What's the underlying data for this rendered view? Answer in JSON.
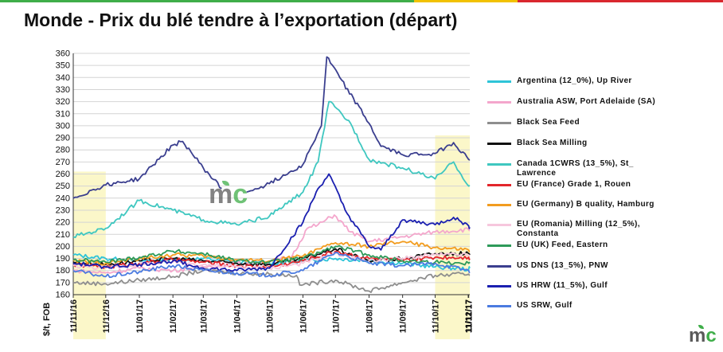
{
  "title": "Monde - Prix du blé tendre à l’exportation (départ)",
  "brand": {
    "logo_text_m": "m",
    "logo_text_c": "c",
    "logo_icon": "mc-leaf-logo",
    "colors": [
      "#3fae49",
      "#f2c200",
      "#d9272e"
    ]
  },
  "chart_data": {
    "type": "line",
    "title": "",
    "ylabel": "$/t, FOB",
    "xlabel": "",
    "ylim": [
      160,
      360
    ],
    "ytick_step": 10,
    "xlim": [
      "2016-11-11",
      "2017-11-12"
    ],
    "x_tick_labels": [
      "11/11/16",
      "11/12/16",
      "11/01/17",
      "11/02/17",
      "11/03/17",
      "11/04/17",
      "11/05/17",
      "11/06/17",
      "11/07/17",
      "11/08/17",
      "11/09/17",
      "11/10/17",
      "11/11/17",
      "11/12/17"
    ],
    "x_tick_dates": [
      "2016-11-11",
      "2016-12-11",
      "2017-01-11",
      "2017-02-11",
      "2017-03-11",
      "2017-04-11",
      "2017-05-11",
      "2017-06-11",
      "2017-07-11",
      "2017-08-11",
      "2017-09-11",
      "2017-10-11",
      "2017-11-11",
      "2017-12-11"
    ],
    "grid": "horizontal",
    "legend_position": "right",
    "highlight_color": "#fbf7c9",
    "highlights": [
      {
        "from": "2016-11-11",
        "to": "2016-12-11",
        "ymax": 262
      },
      {
        "from": "2017-10-11",
        "to": "2017-11-12",
        "ymax": 292
      }
    ],
    "series": [
      {
        "name": "Argentina (12_0%), Up River",
        "color": "#2ec4d8",
        "values": [
          [
            "2016-11-11",
            193
          ],
          [
            "2016-12-11",
            190
          ],
          [
            "2017-01-11",
            188
          ],
          [
            "2017-02-11",
            189
          ],
          [
            "2017-03-11",
            190
          ],
          [
            "2017-04-11",
            187
          ],
          [
            "2017-05-11",
            186
          ],
          [
            "2017-06-11",
            188
          ],
          [
            "2017-07-11",
            190
          ],
          [
            "2017-08-11",
            188
          ],
          [
            "2017-09-11",
            186
          ],
          [
            "2017-10-11",
            183
          ],
          [
            "2017-11-11",
            181
          ],
          [
            "2017-11-12",
            182
          ]
        ]
      },
      {
        "name": "Australia ASW, Port Adelaide (SA)",
        "color": "#f4a6cc",
        "values": [
          [
            "2016-11-11",
            180
          ],
          [
            "2016-12-11",
            178
          ],
          [
            "2017-01-11",
            182
          ],
          [
            "2017-02-11",
            180
          ],
          [
            "2017-03-11",
            183
          ],
          [
            "2017-04-11",
            186
          ],
          [
            "2017-05-11",
            187
          ],
          [
            "2017-06-01",
            192
          ],
          [
            "2017-06-15",
            215
          ],
          [
            "2017-06-25",
            218
          ],
          [
            "2017-07-10",
            226
          ],
          [
            "2017-07-25",
            212
          ],
          [
            "2017-08-11",
            204
          ],
          [
            "2017-09-11",
            208
          ],
          [
            "2017-10-11",
            212
          ],
          [
            "2017-11-11",
            214
          ],
          [
            "2017-11-12",
            213
          ]
        ]
      },
      {
        "name": "Black Sea Feed",
        "color": "#8e8e8e",
        "values": [
          [
            "2016-11-11",
            170
          ],
          [
            "2016-12-11",
            169
          ],
          [
            "2017-01-11",
            172
          ],
          [
            "2017-02-11",
            175
          ],
          [
            "2017-03-11",
            180
          ],
          [
            "2017-04-11",
            178
          ],
          [
            "2017-05-11",
            177
          ],
          [
            "2017-06-05",
            176
          ],
          [
            "2017-06-08",
            168
          ],
          [
            "2017-07-11",
            172
          ],
          [
            "2017-08-11",
            163
          ],
          [
            "2017-09-11",
            170
          ],
          [
            "2017-10-11",
            176
          ],
          [
            "2017-11-11",
            177
          ],
          [
            "2017-11-12",
            176
          ]
        ]
      },
      {
        "name": "Black Sea Milling",
        "color": "#111111",
        "values": [
          [
            "2016-11-11",
            187
          ],
          [
            "2016-12-11",
            185
          ],
          [
            "2017-01-11",
            188
          ],
          [
            "2017-02-11",
            190
          ],
          [
            "2017-03-11",
            188
          ],
          [
            "2017-04-11",
            186
          ],
          [
            "2017-05-11",
            185
          ],
          [
            "2017-06-11",
            190
          ],
          [
            "2017-07-11",
            198
          ],
          [
            "2017-08-11",
            188
          ],
          [
            "2017-09-11",
            190
          ],
          [
            "2017-10-11",
            194
          ],
          [
            "2017-11-11",
            194
          ],
          [
            "2017-11-12",
            193
          ]
        ]
      },
      {
        "name": "Canada 1CWRS (13_5%), St_ Lawrence",
        "color": "#3fc7c0",
        "values": [
          [
            "2016-11-11",
            208
          ],
          [
            "2016-12-11",
            215
          ],
          [
            "2017-01-11",
            238
          ],
          [
            "2017-02-11",
            230
          ],
          [
            "2017-03-11",
            222
          ],
          [
            "2017-04-11",
            218
          ],
          [
            "2017-05-11",
            225
          ],
          [
            "2017-06-11",
            245
          ],
          [
            "2017-06-25",
            270
          ],
          [
            "2017-07-05",
            320
          ],
          [
            "2017-07-25",
            302
          ],
          [
            "2017-08-11",
            272
          ],
          [
            "2017-09-11",
            265
          ],
          [
            "2017-10-11",
            256
          ],
          [
            "2017-10-28",
            270
          ],
          [
            "2017-11-11",
            250
          ],
          [
            "2017-11-12",
            250
          ]
        ]
      },
      {
        "name": "EU (France) Grade 1, Rouen",
        "color": "#e3252b",
        "values": [
          [
            "2016-11-11",
            185
          ],
          [
            "2016-12-11",
            183
          ],
          [
            "2017-01-11",
            186
          ],
          [
            "2017-02-11",
            189
          ],
          [
            "2017-03-11",
            187
          ],
          [
            "2017-04-11",
            184
          ],
          [
            "2017-05-11",
            183
          ],
          [
            "2017-06-11",
            188
          ],
          [
            "2017-07-11",
            196
          ],
          [
            "2017-08-11",
            190
          ],
          [
            "2017-09-11",
            188
          ],
          [
            "2017-10-11",
            191
          ],
          [
            "2017-11-11",
            191
          ],
          [
            "2017-11-12",
            190
          ]
        ]
      },
      {
        "name": "EU (Germany) B quality, Hamburg",
        "color": "#f29c1f",
        "values": [
          [
            "2016-11-11",
            188
          ],
          [
            "2016-12-11",
            186
          ],
          [
            "2017-01-11",
            190
          ],
          [
            "2017-02-11",
            193
          ],
          [
            "2017-03-11",
            192
          ],
          [
            "2017-04-11",
            189
          ],
          [
            "2017-05-11",
            188
          ],
          [
            "2017-06-11",
            192
          ],
          [
            "2017-07-11",
            203
          ],
          [
            "2017-08-11",
            200
          ],
          [
            "2017-09-11",
            204
          ],
          [
            "2017-10-11",
            199
          ],
          [
            "2017-11-11",
            197
          ],
          [
            "2017-11-12",
            196
          ]
        ]
      },
      {
        "name": "EU (Romania) Milling (12_5%), Constanta",
        "color": "#f6c7dd",
        "values": [
          [
            "2016-11-11",
            184
          ],
          [
            "2016-12-11",
            182
          ],
          [
            "2017-01-11",
            185
          ],
          [
            "2017-02-11",
            187
          ],
          [
            "2017-03-11",
            185
          ],
          [
            "2017-04-11",
            183
          ],
          [
            "2017-05-11",
            182
          ],
          [
            "2017-06-11",
            186
          ],
          [
            "2017-07-11",
            194
          ],
          [
            "2017-08-11",
            188
          ],
          [
            "2017-09-11",
            190
          ],
          [
            "2017-10-11",
            193
          ],
          [
            "2017-11-11",
            193
          ],
          [
            "2017-11-12",
            192
          ]
        ]
      },
      {
        "name": "EU (UK) Feed, Eastern",
        "color": "#2e9a5a",
        "values": [
          [
            "2016-11-11",
            189
          ],
          [
            "2016-12-11",
            187
          ],
          [
            "2017-01-11",
            191
          ],
          [
            "2017-02-11",
            196
          ],
          [
            "2017-03-11",
            194
          ],
          [
            "2017-04-11",
            188
          ],
          [
            "2017-05-11",
            187
          ],
          [
            "2017-06-11",
            190
          ],
          [
            "2017-07-11",
            200
          ],
          [
            "2017-08-11",
            193
          ],
          [
            "2017-09-11",
            188
          ],
          [
            "2017-10-11",
            187
          ],
          [
            "2017-11-11",
            186
          ],
          [
            "2017-11-12",
            186
          ]
        ]
      },
      {
        "name": "US DNS (13_5%), PNW",
        "color": "#3b3f8f",
        "values": [
          [
            "2016-11-11",
            240
          ],
          [
            "2016-12-11",
            251
          ],
          [
            "2017-01-11",
            256
          ],
          [
            "2017-02-11",
            284
          ],
          [
            "2017-02-20",
            287
          ],
          [
            "2017-03-11",
            265
          ],
          [
            "2017-03-28",
            248
          ],
          [
            "2017-04-05",
            null
          ],
          [
            "2017-04-20",
            245
          ],
          [
            "2017-05-11",
            252
          ],
          [
            "2017-06-11",
            268
          ],
          [
            "2017-06-28",
            300
          ],
          [
            "2017-07-03",
            357
          ],
          [
            "2017-07-15",
            340
          ],
          [
            "2017-08-11",
            302
          ],
          [
            "2017-08-22",
            283
          ],
          [
            "2017-09-11",
            276
          ],
          [
            "2017-10-11",
            277
          ],
          [
            "2017-10-28",
            286
          ],
          [
            "2017-11-11",
            272
          ],
          [
            "2017-11-12",
            272
          ]
        ]
      },
      {
        "name": "US HRW (11_5%), Gulf",
        "color": "#1a1fb0",
        "values": [
          [
            "2016-11-11",
            186
          ],
          [
            "2016-12-11",
            183
          ],
          [
            "2017-01-11",
            185
          ],
          [
            "2017-02-11",
            188
          ],
          [
            "2017-03-11",
            182
          ],
          [
            "2017-04-11",
            180
          ],
          [
            "2017-05-11",
            182
          ],
          [
            "2017-06-11",
            220
          ],
          [
            "2017-06-25",
            248
          ],
          [
            "2017-07-05",
            260
          ],
          [
            "2017-07-20",
            230
          ],
          [
            "2017-08-11",
            200
          ],
          [
            "2017-08-22",
            197
          ],
          [
            "2017-09-11",
            222
          ],
          [
            "2017-10-11",
            218
          ],
          [
            "2017-10-28",
            224
          ],
          [
            "2017-11-11",
            217
          ],
          [
            "2017-11-12",
            216
          ]
        ]
      },
      {
        "name": "US SRW, Gulf",
        "color": "#4b7be0",
        "values": [
          [
            "2016-11-11",
            180
          ],
          [
            "2016-12-11",
            175
          ],
          [
            "2017-01-11",
            179
          ],
          [
            "2017-02-11",
            184
          ],
          [
            "2017-03-11",
            180
          ],
          [
            "2017-04-11",
            178
          ],
          [
            "2017-05-11",
            176
          ],
          [
            "2017-06-11",
            180
          ],
          [
            "2017-07-11",
            195
          ],
          [
            "2017-08-11",
            186
          ],
          [
            "2017-09-11",
            184
          ],
          [
            "2017-10-11",
            186
          ],
          [
            "2017-11-11",
            180
          ],
          [
            "2017-11-12",
            178
          ]
        ]
      }
    ]
  }
}
